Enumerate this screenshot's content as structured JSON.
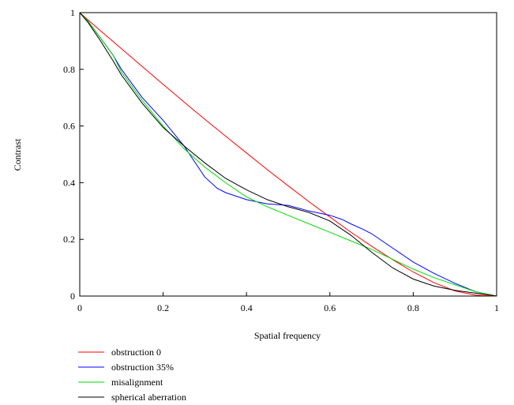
{
  "chart_data": {
    "type": "line",
    "title": "",
    "xlabel": "Spatial frequency",
    "ylabel": "Contrast",
    "xlim": [
      0,
      1
    ],
    "ylim": [
      0,
      1
    ],
    "x_ticks": [
      "0",
      "0.2",
      "0.4",
      "0.6",
      "0.8",
      "1"
    ],
    "y_ticks": [
      "0",
      "0.2",
      "0.4",
      "0.6",
      "0.8",
      "1"
    ],
    "grid": false,
    "legend_position": "bottom-left, below plot",
    "series": [
      {
        "name": "obstruction 0",
        "color": "#ff0000",
        "x": [
          0,
          0.05,
          0.1,
          0.15,
          0.2,
          0.25,
          0.3,
          0.35,
          0.4,
          0.45,
          0.5,
          0.55,
          0.6,
          0.65,
          0.7,
          0.75,
          0.8,
          0.85,
          0.9,
          0.95,
          1.0
        ],
        "y": [
          1.0,
          0.936,
          0.873,
          0.81,
          0.747,
          0.685,
          0.624,
          0.564,
          0.505,
          0.446,
          0.389,
          0.333,
          0.279,
          0.226,
          0.176,
          0.129,
          0.085,
          0.047,
          0.018,
          0.003,
          0.0
        ]
      },
      {
        "name": "obstruction 35%",
        "color": "#0000ff",
        "x": [
          0,
          0.02,
          0.05,
          0.08,
          0.1,
          0.15,
          0.2,
          0.25,
          0.3,
          0.33,
          0.35,
          0.4,
          0.45,
          0.5,
          0.55,
          0.6,
          0.63,
          0.65,
          0.68,
          0.7,
          0.75,
          0.8,
          0.85,
          0.9,
          0.95,
          1.0
        ],
        "y": [
          1.0,
          0.97,
          0.91,
          0.85,
          0.8,
          0.7,
          0.62,
          0.53,
          0.42,
          0.38,
          0.365,
          0.34,
          0.325,
          0.32,
          0.3,
          0.285,
          0.27,
          0.255,
          0.235,
          0.22,
          0.17,
          0.12,
          0.08,
          0.045,
          0.015,
          0.0
        ]
      },
      {
        "name": "misalignment",
        "color": "#00dd00",
        "x": [
          0,
          0.02,
          0.05,
          0.08,
          0.1,
          0.15,
          0.2,
          0.25,
          0.3,
          0.35,
          0.4,
          0.45,
          0.5,
          0.55,
          0.6,
          0.65,
          0.7,
          0.75,
          0.8,
          0.85,
          0.9,
          0.95,
          1.0
        ],
        "y": [
          1.0,
          0.97,
          0.91,
          0.85,
          0.79,
          0.69,
          0.6,
          0.52,
          0.455,
          0.4,
          0.35,
          0.315,
          0.285,
          0.255,
          0.225,
          0.195,
          0.165,
          0.13,
          0.095,
          0.065,
          0.04,
          0.015,
          0.0
        ]
      },
      {
        "name": "spherical aberration",
        "color": "#000000",
        "x": [
          0,
          0.02,
          0.05,
          0.08,
          0.1,
          0.15,
          0.2,
          0.25,
          0.3,
          0.35,
          0.4,
          0.45,
          0.5,
          0.55,
          0.6,
          0.65,
          0.7,
          0.75,
          0.8,
          0.85,
          0.9,
          0.95,
          1.0
        ],
        "y": [
          1.0,
          0.965,
          0.9,
          0.83,
          0.78,
          0.68,
          0.595,
          0.53,
          0.47,
          0.415,
          0.375,
          0.34,
          0.315,
          0.295,
          0.265,
          0.215,
          0.155,
          0.1,
          0.06,
          0.035,
          0.02,
          0.01,
          0.0
        ]
      }
    ]
  }
}
